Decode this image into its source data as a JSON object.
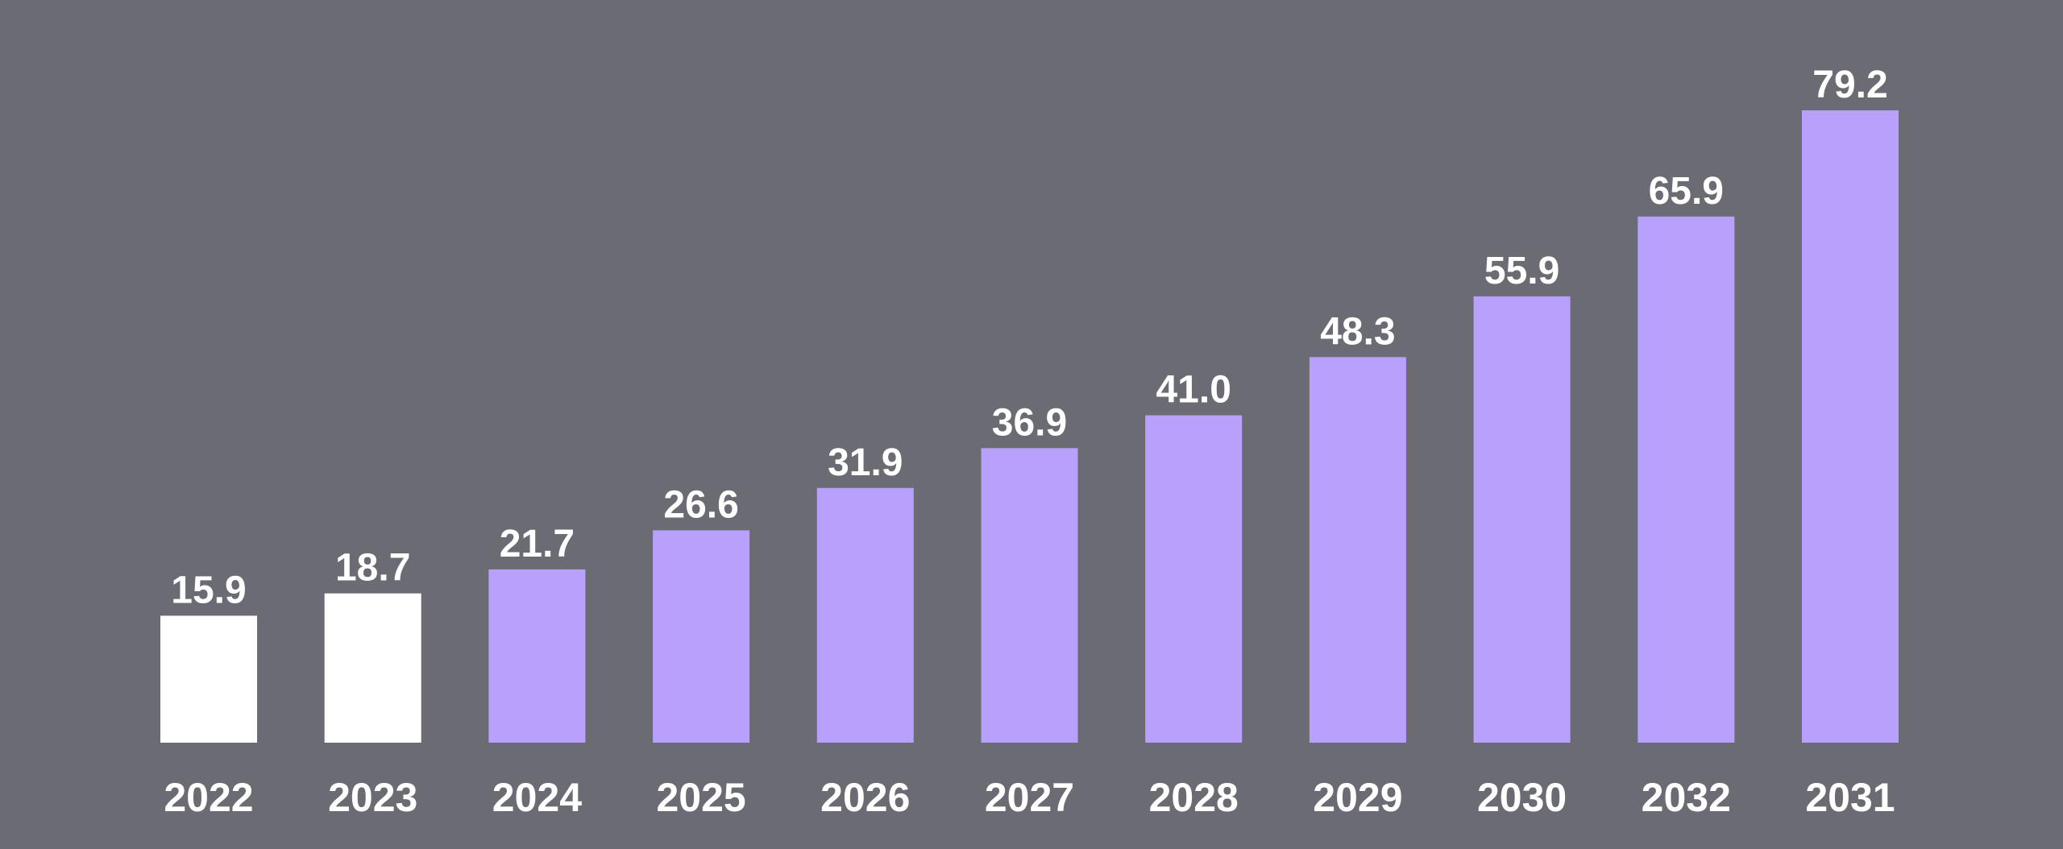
{
  "colors": {
    "background": "#6b6b74",
    "actual_bar": "#ffffff",
    "forecast_bar": "#b8a1fc",
    "label_text": "#ffffff"
  },
  "chart_data": {
    "type": "bar",
    "title": "",
    "xlabel": "",
    "ylabel": "",
    "categories": [
      "2022",
      "2023",
      "2024",
      "2025",
      "2026",
      "2027",
      "2028",
      "2029",
      "2030",
      "2032",
      "2031"
    ],
    "values": [
      15.9,
      18.7,
      21.7,
      26.6,
      31.9,
      36.9,
      41.0,
      48.3,
      55.9,
      65.9,
      79.2
    ],
    "value_labels": [
      "15.9",
      "18.7",
      "21.7",
      "26.6",
      "31.9",
      "36.9",
      "41.0",
      "48.3",
      "55.9",
      "65.9",
      "79.2"
    ],
    "bar_style": [
      "actual",
      "actual",
      "forecast",
      "forecast",
      "forecast",
      "forecast",
      "forecast",
      "forecast",
      "forecast",
      "forecast",
      "forecast"
    ],
    "ylim": [
      0,
      79.2
    ],
    "grid": false,
    "legend": "none"
  }
}
